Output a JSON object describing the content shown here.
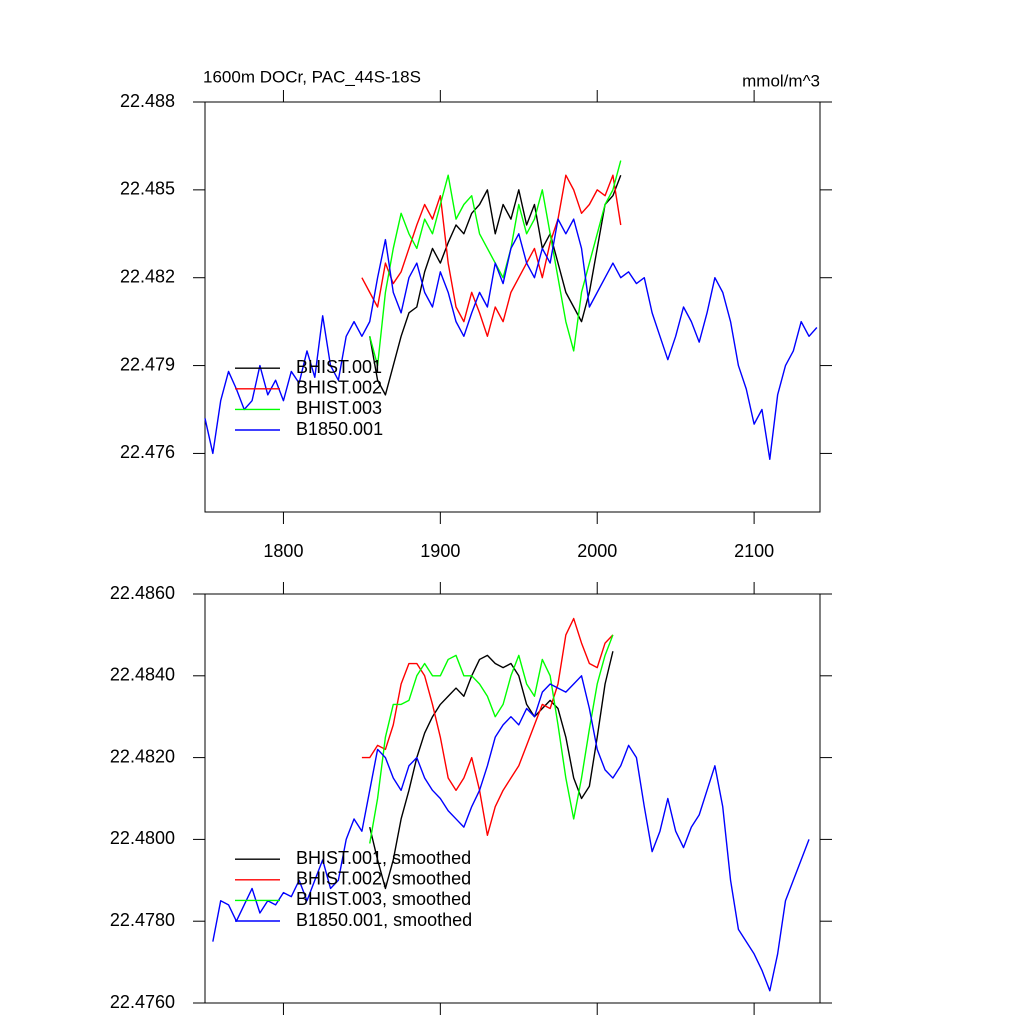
{
  "chart_data": [
    {
      "type": "line",
      "title": "1600m DOCr, PAC_44S-18S",
      "units": "mmol/m^3",
      "xlim": [
        1750,
        2142
      ],
      "xticks": [
        1800,
        1900,
        2000,
        2100
      ],
      "ylim": [
        22.474,
        22.488
      ],
      "yticks": [
        22.476,
        22.479,
        22.482,
        22.485,
        22.488
      ],
      "legend": "lower left",
      "x": [
        1750,
        1755,
        1760,
        1765,
        1770,
        1775,
        1780,
        1785,
        1790,
        1795,
        1800,
        1805,
        1810,
        1815,
        1820,
        1825,
        1830,
        1835,
        1840,
        1845,
        1850,
        1855,
        1860,
        1865,
        1870,
        1875,
        1880,
        1885,
        1890,
        1895,
        1900,
        1905,
        1910,
        1915,
        1920,
        1925,
        1930,
        1935,
        1940,
        1945,
        1950,
        1955,
        1960,
        1965,
        1970,
        1975,
        1980,
        1985,
        1990,
        1995,
        2000,
        2005,
        2010,
        2015,
        2020,
        2025,
        2030,
        2035,
        2040,
        2045,
        2050,
        2055,
        2060,
        2065,
        2070,
        2075,
        2080,
        2085,
        2090,
        2095,
        2100,
        2105,
        2110,
        2115,
        2120,
        2125,
        2130,
        2135,
        2140
      ],
      "series": [
        {
          "name": "BHIST.001",
          "color": "#000000",
          "values": [
            null,
            null,
            null,
            null,
            null,
            null,
            null,
            null,
            null,
            null,
            null,
            null,
            null,
            null,
            null,
            null,
            null,
            null,
            null,
            null,
            null,
            22.48,
            22.4785,
            22.478,
            22.479,
            22.48,
            22.4808,
            22.481,
            22.4822,
            22.483,
            22.4825,
            22.4832,
            22.4838,
            22.4835,
            22.4842,
            22.4845,
            22.485,
            22.4835,
            22.4845,
            22.484,
            22.485,
            22.4838,
            22.4845,
            22.483,
            22.4835,
            22.4825,
            22.4815,
            22.481,
            22.4805,
            22.4815,
            22.483,
            22.4845,
            22.4848,
            22.4855,
            null,
            null,
            null,
            null,
            null,
            null,
            null,
            null,
            null,
            null,
            null,
            null,
            null,
            null,
            null,
            null,
            null,
            null,
            null,
            null,
            null,
            null,
            null,
            null,
            null
          ]
        },
        {
          "name": "BHIST.002",
          "color": "#ff0000",
          "values": [
            null,
            null,
            null,
            null,
            null,
            null,
            null,
            null,
            null,
            null,
            null,
            null,
            null,
            null,
            null,
            null,
            null,
            null,
            null,
            null,
            22.482,
            22.4815,
            22.481,
            22.4825,
            22.4818,
            22.4822,
            22.483,
            22.4838,
            22.4845,
            22.484,
            22.4848,
            22.4825,
            22.481,
            22.4805,
            22.4815,
            22.4808,
            22.48,
            22.481,
            22.4805,
            22.4815,
            22.482,
            22.4825,
            22.483,
            22.482,
            22.4832,
            22.484,
            22.4855,
            22.485,
            22.4842,
            22.4845,
            22.485,
            22.4848,
            22.4855,
            22.4838,
            null,
            null,
            null,
            null,
            null,
            null,
            null,
            null,
            null,
            null,
            null,
            null,
            null,
            null,
            null,
            null,
            null,
            null,
            null,
            null,
            null,
            null,
            null,
            null,
            null
          ]
        },
        {
          "name": "BHIST.003",
          "color": "#00ff00",
          "values": [
            null,
            null,
            null,
            null,
            null,
            null,
            null,
            null,
            null,
            null,
            null,
            null,
            null,
            null,
            null,
            null,
            null,
            null,
            null,
            null,
            null,
            22.48,
            22.479,
            22.4815,
            22.483,
            22.4842,
            22.4835,
            22.483,
            22.484,
            22.4835,
            22.4845,
            22.4855,
            22.484,
            22.4845,
            22.4848,
            22.4835,
            22.483,
            22.4825,
            22.482,
            22.483,
            22.4845,
            22.4835,
            22.484,
            22.485,
            22.4835,
            22.482,
            22.4805,
            22.4795,
            22.4815,
            22.4825,
            22.4835,
            22.4845,
            22.485,
            22.486,
            null,
            null,
            null,
            null,
            null,
            null,
            null,
            null,
            null,
            null,
            null,
            null,
            null,
            null,
            null,
            null,
            null,
            null,
            null,
            null,
            null,
            null,
            null,
            null,
            null
          ]
        },
        {
          "name": "B1850.001",
          "color": "#0000ff",
          "values": [
            22.4772,
            22.476,
            22.4778,
            22.4788,
            22.4782,
            22.4775,
            22.4778,
            22.479,
            22.478,
            22.4785,
            22.4778,
            22.4788,
            22.4784,
            22.4795,
            22.4786,
            22.4807,
            22.479,
            22.4785,
            22.48,
            22.4805,
            22.48,
            22.4805,
            22.482,
            22.4833,
            22.4815,
            22.4808,
            22.482,
            22.4825,
            22.4815,
            22.481,
            22.4822,
            22.4815,
            22.4805,
            22.48,
            22.4808,
            22.4815,
            22.481,
            22.4825,
            22.4818,
            22.483,
            22.4835,
            22.4825,
            22.482,
            22.483,
            22.4825,
            22.484,
            22.4835,
            22.484,
            22.483,
            22.481,
            22.4815,
            22.482,
            22.4825,
            22.482,
            22.4822,
            22.4818,
            22.482,
            22.4808,
            22.48,
            22.4792,
            22.48,
            22.481,
            22.4805,
            22.4798,
            22.4808,
            22.482,
            22.4815,
            22.4805,
            22.479,
            22.4782,
            22.477,
            22.4775,
            22.4758,
            22.478,
            22.479,
            22.4795,
            22.4805,
            22.48,
            22.4803
          ]
        }
      ]
    },
    {
      "type": "line",
      "xlim": [
        1750,
        2142
      ],
      "xticks": [
        1800,
        1900,
        2000,
        2100
      ],
      "ylim": [
        22.476,
        22.486
      ],
      "yticks": [
        {
          "value": 22.476,
          "label": "22.4760"
        },
        {
          "value": 22.478,
          "label": "22.4780"
        },
        {
          "value": 22.48,
          "label": "22.4800"
        },
        {
          "value": 22.482,
          "label": "22.4820"
        },
        {
          "value": 22.484,
          "label": "22.4840"
        },
        {
          "value": 22.486,
          "label": "22.4860"
        }
      ],
      "legend": "lower left",
      "x": [
        1750,
        1755,
        1760,
        1765,
        1770,
        1775,
        1780,
        1785,
        1790,
        1795,
        1800,
        1805,
        1810,
        1815,
        1820,
        1825,
        1830,
        1835,
        1840,
        1845,
        1850,
        1855,
        1860,
        1865,
        1870,
        1875,
        1880,
        1885,
        1890,
        1895,
        1900,
        1905,
        1910,
        1915,
        1920,
        1925,
        1930,
        1935,
        1940,
        1945,
        1950,
        1955,
        1960,
        1965,
        1970,
        1975,
        1980,
        1985,
        1990,
        1995,
        2000,
        2005,
        2010,
        2015,
        2020,
        2025,
        2030,
        2035,
        2040,
        2045,
        2050,
        2055,
        2060,
        2065,
        2070,
        2075,
        2080,
        2085,
        2090,
        2095,
        2100,
        2105,
        2110,
        2115,
        2120,
        2125,
        2130,
        2135,
        2140
      ],
      "series": [
        {
          "name": "BHIST.001, smoothed",
          "color": "#000000",
          "values": [
            null,
            null,
            null,
            null,
            null,
            null,
            null,
            null,
            null,
            null,
            null,
            null,
            null,
            null,
            null,
            null,
            null,
            null,
            null,
            null,
            null,
            22.4803,
            22.4795,
            22.4788,
            22.4795,
            22.4805,
            22.4812,
            22.482,
            22.4826,
            22.483,
            22.4833,
            22.4835,
            22.4837,
            22.4835,
            22.484,
            22.4844,
            22.4845,
            22.4843,
            22.4842,
            22.4843,
            22.484,
            22.4833,
            22.483,
            22.4832,
            22.4834,
            22.4832,
            22.4825,
            22.4815,
            22.481,
            22.4813,
            22.4825,
            22.4838,
            22.4846,
            null,
            null,
            null,
            null,
            null,
            null,
            null,
            null,
            null,
            null,
            null,
            null,
            null,
            null,
            null,
            null,
            null,
            null,
            null,
            null,
            null,
            null,
            null,
            null,
            null,
            null
          ]
        },
        {
          "name": "BHIST.002, smoothed",
          "color": "#ff0000",
          "values": [
            null,
            null,
            null,
            null,
            null,
            null,
            null,
            null,
            null,
            null,
            null,
            null,
            null,
            null,
            null,
            null,
            null,
            null,
            null,
            null,
            22.482,
            22.482,
            22.4823,
            22.4822,
            22.4828,
            22.4838,
            22.4843,
            22.4843,
            22.484,
            22.4833,
            22.4825,
            22.4815,
            22.4812,
            22.4815,
            22.482,
            22.4812,
            22.4801,
            22.4808,
            22.4812,
            22.4815,
            22.4818,
            22.4823,
            22.4828,
            22.4833,
            22.4832,
            22.4838,
            22.485,
            22.4854,
            22.4848,
            22.4843,
            22.4842,
            22.4848,
            22.485,
            null,
            null,
            null,
            null,
            null,
            null,
            null,
            null,
            null,
            null,
            null,
            null,
            null,
            null,
            null,
            null,
            null,
            null,
            null,
            null,
            null,
            null,
            null,
            null,
            null,
            null
          ]
        },
        {
          "name": "BHIST.003, smoothed",
          "color": "#00ff00",
          "values": [
            null,
            null,
            null,
            null,
            null,
            null,
            null,
            null,
            null,
            null,
            null,
            null,
            null,
            null,
            null,
            null,
            null,
            null,
            null,
            null,
            null,
            22.4799,
            22.481,
            22.4825,
            22.4833,
            22.4833,
            22.4834,
            22.484,
            22.4843,
            22.484,
            22.484,
            22.4844,
            22.4845,
            22.484,
            22.484,
            22.4838,
            22.4835,
            22.483,
            22.4833,
            22.484,
            22.4845,
            22.4838,
            22.4835,
            22.4844,
            22.484,
            22.4828,
            22.4815,
            22.4805,
            22.4815,
            22.4827,
            22.4838,
            22.4845,
            22.485,
            null,
            null,
            null,
            null,
            null,
            null,
            null,
            null,
            null,
            null,
            null,
            null,
            null,
            null,
            null,
            null,
            null,
            null,
            null,
            null,
            null,
            null,
            null,
            null,
            null,
            null
          ]
        },
        {
          "name": "B1850.001, smoothed",
          "color": "#0000ff",
          "values": [
            null,
            22.4775,
            22.4785,
            22.4784,
            22.478,
            22.4784,
            22.4788,
            22.4782,
            22.4785,
            22.4784,
            22.4787,
            22.4786,
            22.479,
            22.4785,
            22.479,
            22.4795,
            22.4788,
            22.479,
            22.48,
            22.4805,
            22.4802,
            22.4812,
            22.4822,
            22.482,
            22.4815,
            22.4812,
            22.4818,
            22.482,
            22.4815,
            22.4812,
            22.481,
            22.4807,
            22.4805,
            22.4803,
            22.4808,
            22.4812,
            22.4818,
            22.4825,
            22.4828,
            22.483,
            22.4828,
            22.4832,
            22.483,
            22.4836,
            22.4838,
            22.4837,
            22.4836,
            22.4838,
            22.484,
            22.4832,
            22.4822,
            22.4817,
            22.4815,
            22.4818,
            22.4823,
            22.482,
            22.4808,
            22.4797,
            22.4802,
            22.481,
            22.4802,
            22.4798,
            22.4803,
            22.4806,
            22.4812,
            22.4818,
            22.4808,
            22.479,
            22.4778,
            22.4775,
            22.4772,
            22.4768,
            22.4763,
            22.4772,
            22.4785,
            22.479,
            22.4795,
            22.48,
            null
          ]
        }
      ]
    }
  ]
}
